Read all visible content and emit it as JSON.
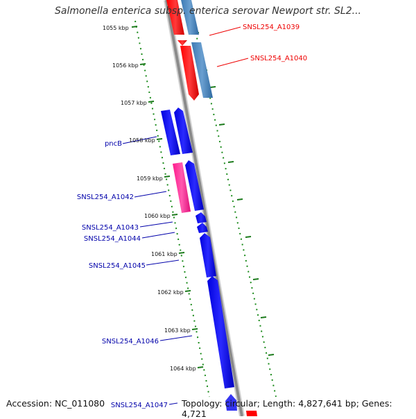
{
  "title": "Salmonella enterica subsp. enterica serovar Newport str. SL2...",
  "footer": {
    "accession": "Accession: NC_011080",
    "summary": "Topology: circular; Length: 4,827,641 bp; Genes: 4,721"
  },
  "ticks": [
    "1055 kbp",
    "1056 kbp",
    "1057 kbp",
    "1058 kbp",
    "1059 kbp",
    "1060 kbp",
    "1061 kbp",
    "1062 kbp",
    "1063 kbp",
    "1064 kbp"
  ],
  "gene_labels": [
    {
      "name": "SNSL254_A1039",
      "color": "#ee0000"
    },
    {
      "name": "SNSL254_A1040",
      "color": "#ee0000"
    },
    {
      "name": "pncB",
      "color": "#0000aa"
    },
    {
      "name": "SNSL254_A1042",
      "color": "#0000aa"
    },
    {
      "name": "SNSL254_A1043",
      "color": "#0000aa"
    },
    {
      "name": "SNSL254_A1044",
      "color": "#0000aa"
    },
    {
      "name": "SNSL254_A1045",
      "color": "#0000aa"
    },
    {
      "name": "SNSL254_A1046",
      "color": "#0000aa"
    },
    {
      "name": "SNSL254_A1047",
      "color": "#0000aa"
    }
  ],
  "colors": {
    "backbone": "#8a8a8a",
    "dotted_ring": "#1a8a1a",
    "gene_red": "#ff0000",
    "gene_steelblue": "#4a86be",
    "gene_blue": "#0a0aee",
    "gene_pink": "#ff2a9a"
  }
}
